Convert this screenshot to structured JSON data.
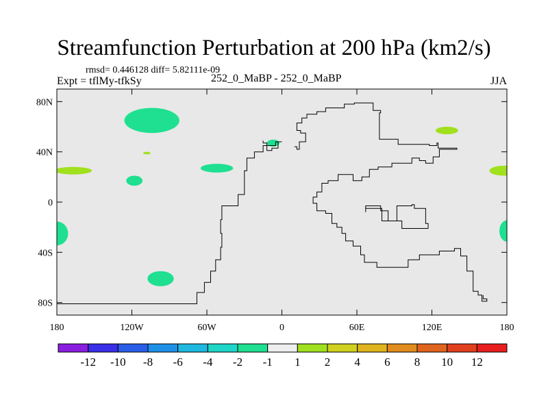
{
  "header": {
    "title": "Streamfunction Perturbation at 200 hPa (km2/s)",
    "stats": "rmsd= 0.446128 diff= 5.82111e-09",
    "experiment": "Expt = tflMy-tfkSy",
    "center_label": "252_0_MaBP - 252_0_MaBP",
    "season": "JJA"
  },
  "colors": {
    "background_field": "#e8e8e8",
    "outline": "#000000"
  },
  "chart_data": {
    "type": "heatmap",
    "title": "Streamfunction Perturbation at 200 hPa (km2/s)",
    "xlabel": "",
    "ylabel": "",
    "xlim": [
      -180,
      180
    ],
    "ylim": [
      -90,
      90
    ],
    "x_ticks": [
      {
        "value": -180,
        "label": "180"
      },
      {
        "value": -120,
        "label": "120W"
      },
      {
        "value": -60,
        "label": "60W"
      },
      {
        "value": 0,
        "label": "0"
      },
      {
        "value": 60,
        "label": "60E"
      },
      {
        "value": 120,
        "label": "120E"
      },
      {
        "value": 180,
        "label": "180"
      }
    ],
    "y_ticks": [
      {
        "value": 80,
        "label": "80N"
      },
      {
        "value": 40,
        "label": "40N"
      },
      {
        "value": 0,
        "label": "0"
      },
      {
        "value": -40,
        "label": "40S"
      },
      {
        "value": -80,
        "label": "80S"
      }
    ],
    "colorbar": {
      "labels": [
        "-12",
        "-10",
        "-8",
        "-6",
        "-4",
        "-2",
        "-1",
        "1",
        "2",
        "4",
        "6",
        "8",
        "10",
        "12"
      ],
      "colors": [
        "#8a1ee0",
        "#3a2ee8",
        "#2a5ee8",
        "#1e90e8",
        "#1eb8e0",
        "#1ed6c8",
        "#1ee090",
        "#eeeeee",
        "#a0e01e",
        "#d0d01e",
        "#e0b41e",
        "#e08c1e",
        "#e0641e",
        "#e0401e",
        "#e81e1e"
      ]
    },
    "anomalies": [
      {
        "lon": -104,
        "lat": 65,
        "rlon": 22,
        "rlat": 10,
        "color": "#1ee090"
      },
      {
        "lon": -52,
        "lat": 27,
        "rlon": 13,
        "rlat": 3.5,
        "color": "#1ee090"
      },
      {
        "lon": -118,
        "lat": 17,
        "rlon": 6.5,
        "rlat": 4,
        "color": "#1ee090"
      },
      {
        "lon": -7,
        "lat": 47,
        "rlon": 5,
        "rlat": 2.8,
        "color": "#1ee090"
      },
      {
        "lon": -97,
        "lat": -61,
        "rlon": 10.5,
        "rlat": 6,
        "color": "#1ee090"
      },
      {
        "lon": -180,
        "lat": -25,
        "rlon": 9,
        "rlat": 9.5,
        "color": "#1ee090"
      },
      {
        "lon": 180,
        "lat": -23,
        "rlon": 6,
        "rlat": 8.5,
        "color": "#1ee090"
      },
      {
        "lon": -167,
        "lat": 25,
        "rlon": 15,
        "rlat": 3,
        "color": "#a0e01e"
      },
      {
        "lon": 178,
        "lat": 25,
        "rlon": 12,
        "rlat": 4,
        "color": "#a0e01e"
      },
      {
        "lon": 132,
        "lat": 57,
        "rlon": 9,
        "rlat": 3,
        "color": "#a0e01e"
      },
      {
        "lon": -108,
        "lat": 39,
        "rlon": 3,
        "rlat": 1,
        "color": "#a0e01e"
      }
    ],
    "coastline": [
      [
        -180,
        -81
      ],
      [
        -70,
        -81
      ],
      [
        -68,
        -72
      ],
      [
        -62,
        -64
      ],
      [
        -57,
        -55
      ],
      [
        -53,
        -46
      ],
      [
        -49,
        -36
      ],
      [
        -48,
        -25
      ],
      [
        -49,
        -14
      ],
      [
        -48,
        -3
      ],
      [
        -38,
        -3
      ],
      [
        -35,
        -3
      ],
      [
        -35,
        6
      ],
      [
        -30,
        12
      ],
      [
        -30,
        25
      ],
      [
        -28,
        35
      ],
      [
        -22,
        40
      ],
      [
        -15,
        45
      ],
      [
        -5,
        48
      ],
      [
        0,
        48
      ],
      [
        -3,
        43
      ],
      [
        -8,
        41
      ],
      [
        -12,
        47
      ],
      [
        -15,
        49
      ]
    ],
    "outline_a": [
      [
        10,
        44
      ],
      [
        12,
        42
      ],
      [
        14,
        48
      ],
      [
        19,
        55
      ],
      [
        15,
        57
      ],
      [
        12,
        63
      ],
      [
        16,
        67
      ],
      [
        20,
        70
      ],
      [
        28,
        72
      ],
      [
        35,
        75
      ],
      [
        50,
        78
      ],
      [
        58,
        79
      ],
      [
        73,
        73
      ],
      [
        79,
        71
      ],
      [
        78,
        50
      ],
      [
        93,
        46
      ],
      [
        100,
        46
      ],
      [
        118,
        45
      ],
      [
        124,
        47
      ],
      [
        125,
        43
      ],
      [
        140,
        42
      ],
      [
        126,
        36
      ],
      [
        121,
        31
      ],
      [
        115,
        33
      ],
      [
        110,
        35
      ],
      [
        104,
        31
      ],
      [
        98,
        31
      ],
      [
        88,
        28
      ],
      [
        77,
        26
      ],
      [
        70,
        20
      ],
      [
        64,
        17
      ],
      [
        57,
        22
      ],
      [
        45,
        17
      ],
      [
        37,
        15
      ],
      [
        32,
        8
      ],
      [
        28,
        4
      ],
      [
        25,
        -1
      ],
      [
        28,
        -7
      ],
      [
        35,
        -9
      ],
      [
        40,
        -17
      ],
      [
        44,
        -20
      ],
      [
        48,
        -25
      ],
      [
        51,
        -31
      ],
      [
        57,
        -35
      ],
      [
        62,
        -35
      ],
      [
        63,
        -42
      ],
      [
        66,
        -48
      ],
      [
        76,
        -52
      ],
      [
        90,
        -52
      ],
      [
        101,
        -46
      ],
      [
        110,
        -42
      ],
      [
        126,
        -39
      ],
      [
        138,
        -37
      ],
      [
        143,
        -43
      ],
      [
        148,
        -55
      ],
      [
        153,
        -65
      ],
      [
        153,
        -71
      ],
      [
        157,
        -74
      ],
      [
        160,
        -79
      ],
      [
        164,
        -77
      ],
      [
        161,
        -74
      ]
    ],
    "outline_b": [
      [
        67,
        -8
      ],
      [
        67,
        -3
      ],
      [
        79,
        -7
      ],
      [
        85,
        -15
      ],
      [
        96,
        -21
      ],
      [
        117,
        -17
      ],
      [
        115,
        -5
      ],
      [
        106,
        -2
      ],
      [
        104,
        -3
      ],
      [
        92,
        -15
      ],
      [
        80,
        -5
      ],
      [
        67,
        -8
      ]
    ]
  }
}
